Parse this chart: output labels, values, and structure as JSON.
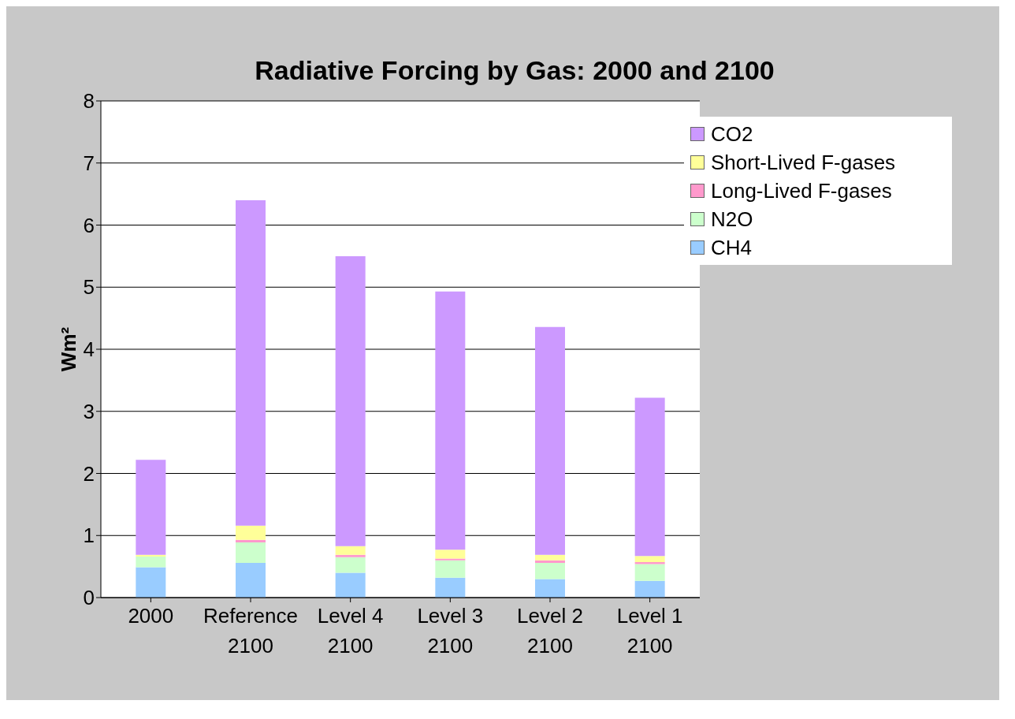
{
  "chart_data": {
    "type": "bar",
    "title": "Radiative Forcing by Gas: 2000 and 2100",
    "ylabel": "Wm²",
    "categories": [
      "2000",
      "Reference\n2100",
      "Level 4\n2100",
      "Level 3\n2100",
      "Level 2\n2100",
      "Level 1\n2100"
    ],
    "stacked": true,
    "ylim": [
      0,
      8
    ],
    "yticks": [
      0,
      1,
      2,
      3,
      4,
      5,
      6,
      7,
      8
    ],
    "grid": "y",
    "legend": "top right",
    "series": [
      {
        "name": "CH4",
        "color": "#99ccff",
        "values": [
          0.49,
          0.56,
          0.4,
          0.32,
          0.3,
          0.27
        ]
      },
      {
        "name": "N2O",
        "color": "#ccffcc",
        "values": [
          0.17,
          0.33,
          0.25,
          0.28,
          0.26,
          0.27
        ]
      },
      {
        "name": "Long-Lived F-gases",
        "color": "#ff99cc",
        "values": [
          null,
          0.04,
          0.04,
          0.03,
          0.04,
          0.03
        ]
      },
      {
        "name": "Short-Lived F-gases",
        "color": "#ffff99",
        "values": [
          0.03,
          0.23,
          0.14,
          0.14,
          0.09,
          0.1
        ]
      },
      {
        "name": "CO2",
        "color": "#cc99ff",
        "values": [
          1.53,
          5.24,
          4.67,
          4.16,
          3.67,
          2.55
        ]
      }
    ]
  }
}
